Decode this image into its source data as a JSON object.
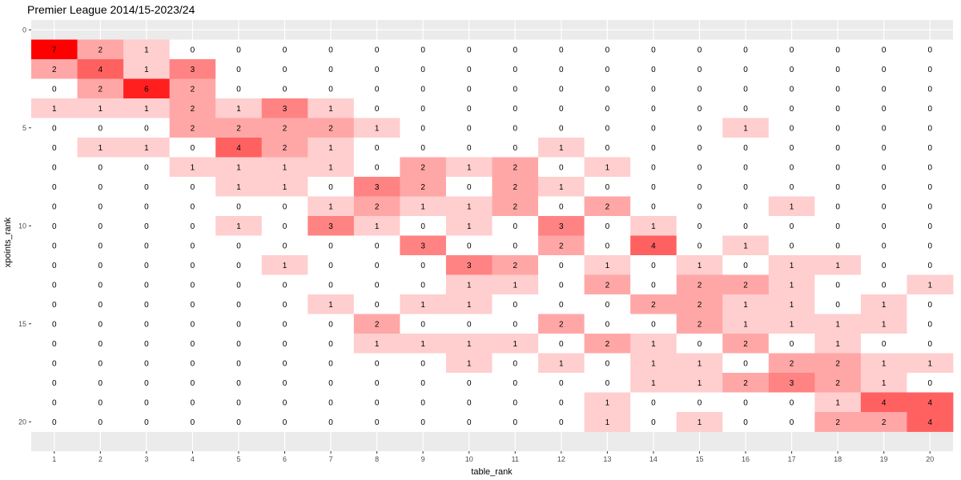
{
  "chart_data": {
    "type": "heatmap",
    "title": "Premier League 2014/15-2023/24",
    "xlabel": "table_rank",
    "ylabel": "xpoints_rank",
    "x": [
      1,
      2,
      3,
      4,
      5,
      6,
      7,
      8,
      9,
      10,
      11,
      12,
      13,
      14,
      15,
      16,
      17,
      18,
      19,
      20
    ],
    "y": [
      1,
      2,
      3,
      4,
      5,
      6,
      7,
      8,
      9,
      10,
      11,
      12,
      13,
      14,
      15,
      16,
      17,
      18,
      19,
      20
    ],
    "x_ticks": [
      "1",
      "2",
      "3",
      "4",
      "5",
      "6",
      "7",
      "8",
      "9",
      "10",
      "11",
      "12",
      "13",
      "14",
      "15",
      "16",
      "17",
      "18",
      "19",
      "20"
    ],
    "y_ticks": [
      "0",
      "5",
      "10",
      "15",
      "20"
    ],
    "y_tick_values": [
      0,
      5,
      10,
      15,
      20
    ],
    "ylim": [
      -0.5,
      21.5
    ],
    "y_reversed": true,
    "grid": true,
    "color_low": "#ffffff",
    "color_high": "#ff0000",
    "value_max": 7,
    "values": [
      [
        7,
        2,
        1,
        0,
        0,
        0,
        0,
        0,
        0,
        0,
        0,
        0,
        0,
        0,
        0,
        0,
        0,
        0,
        0,
        0
      ],
      [
        2,
        4,
        1,
        3,
        0,
        0,
        0,
        0,
        0,
        0,
        0,
        0,
        0,
        0,
        0,
        0,
        0,
        0,
        0,
        0
      ],
      [
        0,
        2,
        6,
        2,
        0,
        0,
        0,
        0,
        0,
        0,
        0,
        0,
        0,
        0,
        0,
        0,
        0,
        0,
        0,
        0
      ],
      [
        1,
        1,
        1,
        2,
        1,
        3,
        1,
        0,
        0,
        0,
        0,
        0,
        0,
        0,
        0,
        0,
        0,
        0,
        0,
        0
      ],
      [
        0,
        0,
        0,
        2,
        2,
        2,
        2,
        1,
        0,
        0,
        0,
        0,
        0,
        0,
        0,
        1,
        0,
        0,
        0,
        0
      ],
      [
        0,
        1,
        1,
        0,
        4,
        2,
        1,
        0,
        0,
        0,
        0,
        1,
        0,
        0,
        0,
        0,
        0,
        0,
        0,
        0
      ],
      [
        0,
        0,
        0,
        1,
        1,
        1,
        1,
        0,
        2,
        1,
        2,
        0,
        1,
        0,
        0,
        0,
        0,
        0,
        0,
        0
      ],
      [
        0,
        0,
        0,
        0,
        1,
        1,
        0,
        3,
        2,
        0,
        2,
        1,
        0,
        0,
        0,
        0,
        0,
        0,
        0,
        0
      ],
      [
        0,
        0,
        0,
        0,
        0,
        0,
        1,
        2,
        1,
        1,
        2,
        0,
        2,
        0,
        0,
        0,
        1,
        0,
        0,
        0
      ],
      [
        0,
        0,
        0,
        0,
        1,
        0,
        3,
        1,
        0,
        1,
        0,
        3,
        0,
        1,
        0,
        0,
        0,
        0,
        0,
        0
      ],
      [
        0,
        0,
        0,
        0,
        0,
        0,
        0,
        0,
        3,
        0,
        0,
        2,
        0,
        4,
        0,
        1,
        0,
        0,
        0,
        0
      ],
      [
        0,
        0,
        0,
        0,
        0,
        1,
        0,
        0,
        0,
        3,
        2,
        0,
        1,
        0,
        1,
        0,
        1,
        1,
        0,
        0
      ],
      [
        0,
        0,
        0,
        0,
        0,
        0,
        0,
        0,
        0,
        1,
        1,
        0,
        2,
        0,
        2,
        2,
        1,
        0,
        0,
        1
      ],
      [
        0,
        0,
        0,
        0,
        0,
        0,
        1,
        0,
        1,
        1,
        0,
        0,
        0,
        2,
        2,
        1,
        1,
        0,
        1,
        0
      ],
      [
        0,
        0,
        0,
        0,
        0,
        0,
        0,
        2,
        0,
        0,
        0,
        2,
        0,
        0,
        2,
        1,
        1,
        1,
        1,
        0
      ],
      [
        0,
        0,
        0,
        0,
        0,
        0,
        0,
        1,
        1,
        1,
        1,
        0,
        2,
        1,
        0,
        2,
        0,
        1,
        0,
        0
      ],
      [
        0,
        0,
        0,
        0,
        0,
        0,
        0,
        0,
        0,
        1,
        0,
        1,
        0,
        1,
        1,
        0,
        2,
        2,
        1,
        1
      ],
      [
        0,
        0,
        0,
        0,
        0,
        0,
        0,
        0,
        0,
        0,
        0,
        0,
        0,
        1,
        1,
        2,
        3,
        2,
        1,
        0
      ],
      [
        0,
        0,
        0,
        0,
        0,
        0,
        0,
        0,
        0,
        0,
        0,
        0,
        1,
        0,
        0,
        0,
        0,
        1,
        4,
        4
      ],
      [
        0,
        0,
        0,
        0,
        0,
        0,
        0,
        0,
        0,
        0,
        0,
        0,
        1,
        0,
        1,
        0,
        0,
        2,
        2,
        4
      ]
    ]
  }
}
